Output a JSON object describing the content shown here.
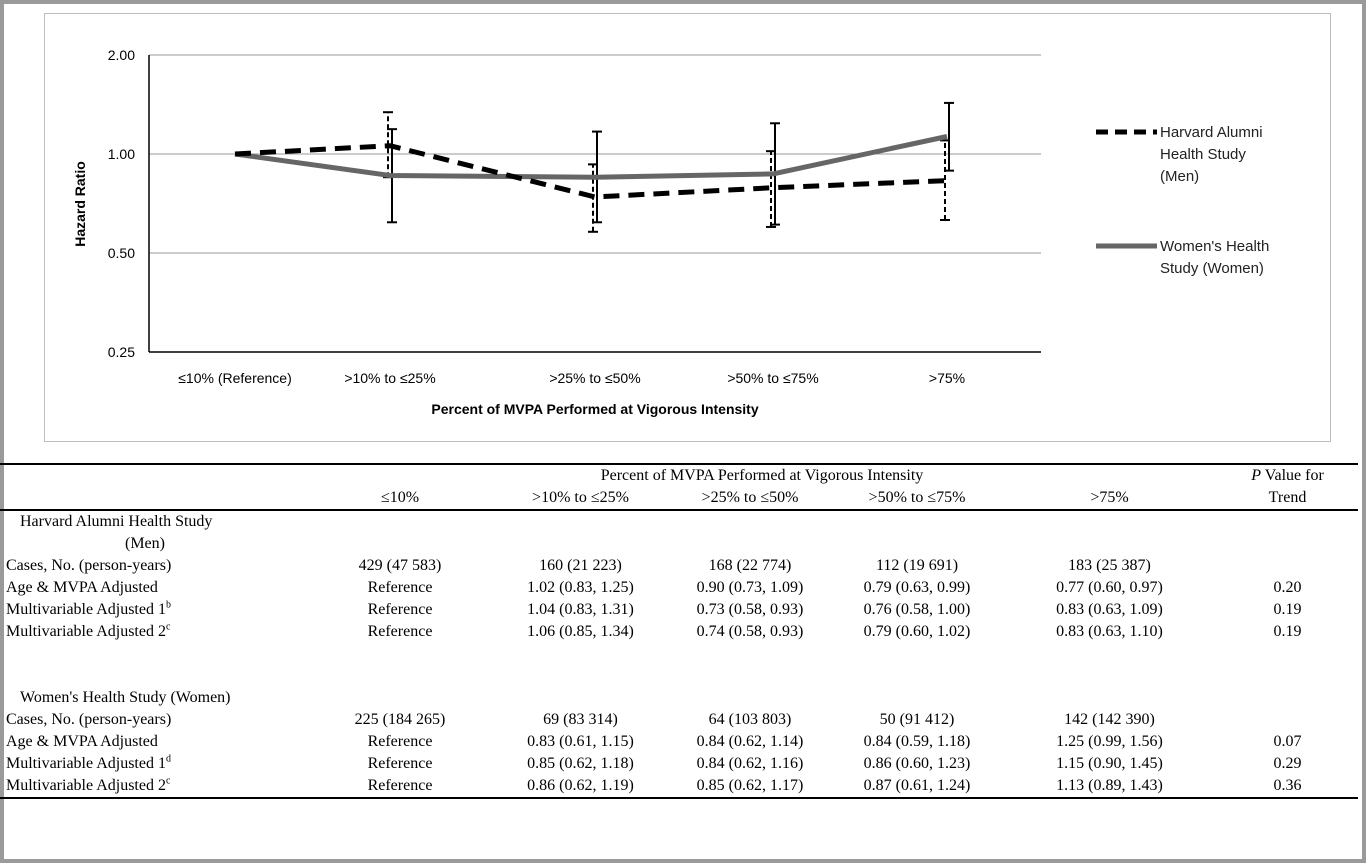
{
  "chart_data": {
    "type": "line",
    "xlabel": "Percent of MVPA Performed at Vigorous Intensity",
    "ylabel": "Hazard Ratio",
    "yscale": "log2",
    "ylim": [
      0.25,
      2.0
    ],
    "yticks": [
      "2.00",
      "1.00",
      "0.50",
      "0.25"
    ],
    "ytick_values": [
      2.0,
      1.0,
      0.5,
      0.25
    ],
    "grid": "horizontal",
    "legend": "right",
    "categories": [
      "≤10% (Reference)",
      ">10% to ≤25%",
      ">25% to ≤50%",
      ">50% to ≤75%",
      ">75%"
    ],
    "series": [
      {
        "name": "Harvard Alumni Health Study (Men)",
        "style": "dashed",
        "color": "#000000",
        "values": [
          1.0,
          1.06,
          0.74,
          0.79,
          0.83
        ],
        "ci_low": [
          1.0,
          0.85,
          0.58,
          0.6,
          0.63
        ],
        "ci_high": [
          1.0,
          1.34,
          0.93,
          1.02,
          1.1
        ]
      },
      {
        "name": "Women's Health Study (Women)",
        "style": "solid",
        "color": "#666666",
        "values": [
          1.0,
          0.86,
          0.85,
          0.87,
          1.13
        ],
        "ci_low": [
          1.0,
          0.62,
          0.62,
          0.61,
          0.89
        ],
        "ci_high": [
          1.0,
          1.19,
          1.17,
          1.24,
          1.43
        ]
      }
    ],
    "legend_lines": [
      [
        "Harvard Alumni",
        "Health Study",
        "(Men)"
      ],
      [
        "Women's Health",
        "Study (Women)"
      ]
    ]
  },
  "table": {
    "spanner": "Percent of MVPA Performed at Vigorous Intensity",
    "p_header_1": "Value for",
    "p_header_p": "P",
    "p_header_2": "Trend",
    "columns": [
      "≤10%",
      ">10% to ≤25%",
      ">25% to ≤50%",
      ">50% to ≤75%",
      ">75%"
    ],
    "groups": [
      {
        "title_1": "Harvard Alumni Health Study",
        "title_2": "(Men)",
        "rows": [
          {
            "label": "Cases, No. (person-years)",
            "sup": "",
            "cells": [
              "429 (47 583)",
              "160 (21 223)",
              "168 (22 774)",
              "112 (19 691)",
              "183 (25 387)"
            ],
            "p": ""
          },
          {
            "label": "Age & MVPA Adjusted",
            "sup": "",
            "cells": [
              "Reference",
              "1.02 (0.83, 1.25)",
              "0.90 (0.73, 1.09)",
              "0.79 (0.63, 0.99)",
              "0.77 (0.60, 0.97)"
            ],
            "p": "0.20"
          },
          {
            "label": "Multivariable Adjusted 1",
            "sup": "b",
            "cells": [
              "Reference",
              "1.04 (0.83, 1.31)",
              "0.73 (0.58, 0.93)",
              "0.76 (0.58, 1.00)",
              "0.83 (0.63, 1.09)"
            ],
            "p": "0.19"
          },
          {
            "label": "Multivariable Adjusted 2",
            "sup": "c",
            "cells": [
              "Reference",
              "1.06 (0.85, 1.34)",
              "0.74 (0.58, 0.93)",
              "0.79 (0.60, 1.02)",
              "0.83 (0.63, 1.10)"
            ],
            "p": "0.19"
          }
        ]
      },
      {
        "title_1": "Women's Health Study (Women)",
        "title_2": "",
        "rows": [
          {
            "label": "Cases, No. (person-years)",
            "sup": "",
            "cells": [
              "225 (184 265)",
              "69 (83 314)",
              "64 (103 803)",
              "50 (91 412)",
              "142 (142 390)"
            ],
            "p": ""
          },
          {
            "label": "Age & MVPA Adjusted",
            "sup": "",
            "cells": [
              "Reference",
              "0.83 (0.61, 1.15)",
              "0.84 (0.62, 1.14)",
              "0.84 (0.59, 1.18)",
              "1.25 (0.99, 1.56)"
            ],
            "p": "0.07"
          },
          {
            "label": "Multivariable Adjusted 1",
            "sup": "d",
            "cells": [
              "Reference",
              "0.85 (0.62, 1.18)",
              "0.84 (0.62, 1.16)",
              "0.86 (0.60, 1.23)",
              "1.15 (0.90, 1.45)"
            ],
            "p": "0.29"
          },
          {
            "label": "Multivariable Adjusted 2",
            "sup": "c",
            "cells": [
              "Reference",
              "0.86 (0.62, 1.19)",
              "0.85 (0.62, 1.17)",
              "0.87 (0.61, 1.24)",
              "1.13 (0.89, 1.43)"
            ],
            "p": "0.36"
          }
        ]
      }
    ]
  }
}
